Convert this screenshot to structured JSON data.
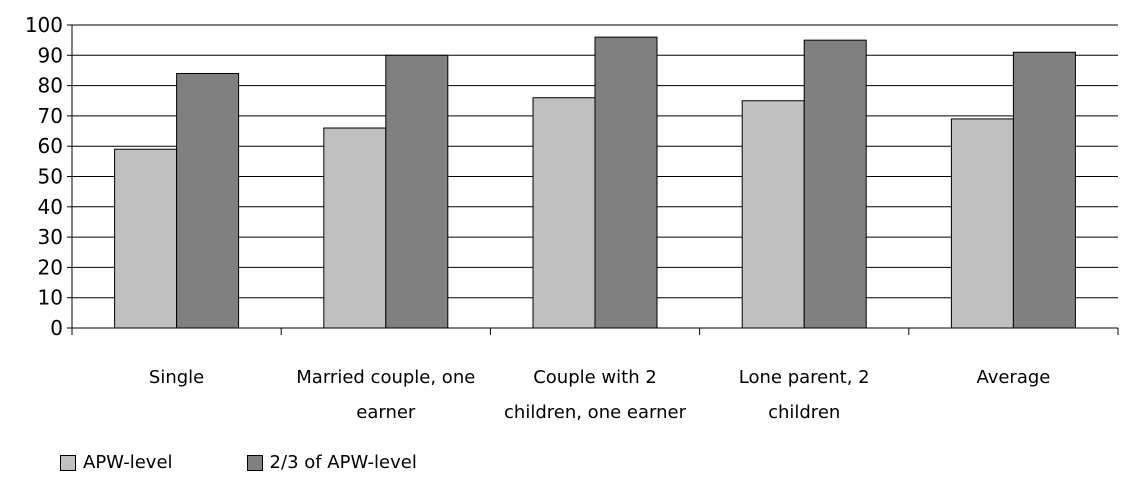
{
  "chart_data": {
    "type": "bar",
    "categories": [
      [
        "Single"
      ],
      [
        "Married couple, one",
        "earner"
      ],
      [
        "Couple with 2",
        "children, one earner"
      ],
      [
        "Lone parent, 2",
        "children"
      ],
      [
        "Average"
      ]
    ],
    "series": [
      {
        "name": "APW-level",
        "color": "#c0c0c0",
        "values": [
          59,
          66,
          76,
          75,
          69
        ]
      },
      {
        "name": "2/3 of APW-level",
        "color": "#808080",
        "values": [
          84,
          90,
          96,
          95,
          91
        ]
      }
    ],
    "ylim": [
      0,
      100
    ],
    "yticks": [
      0,
      10,
      20,
      30,
      40,
      50,
      60,
      70,
      80,
      90,
      100
    ],
    "grid": true,
    "legend_position": "bottom-left"
  }
}
